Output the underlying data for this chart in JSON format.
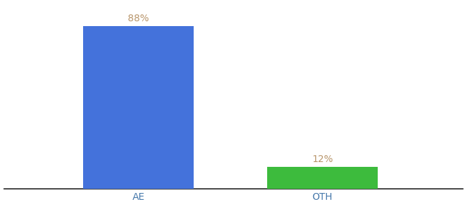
{
  "categories": [
    "AE",
    "OTH"
  ],
  "values": [
    88,
    12
  ],
  "bar_colors": [
    "#4472db",
    "#3dbb3d"
  ],
  "label_texts": [
    "88%",
    "12%"
  ],
  "label_color": "#b8956a",
  "ylim": [
    0,
    100
  ],
  "background_color": "#ffffff",
  "bar_width": 0.18,
  "label_fontsize": 10,
  "tick_fontsize": 10,
  "spine_color": "#222222",
  "x_positions": [
    0.32,
    0.62
  ]
}
